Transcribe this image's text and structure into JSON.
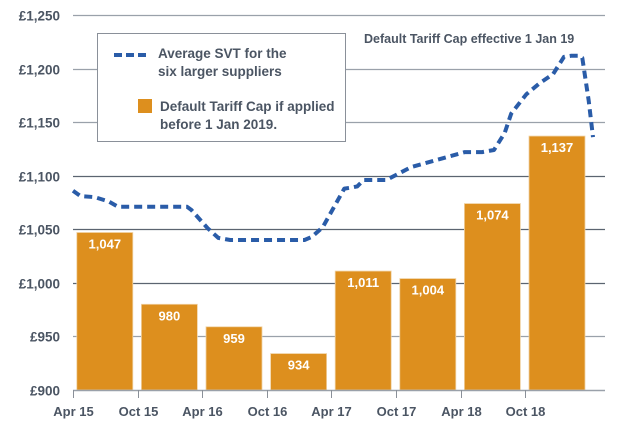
{
  "chart_data": {
    "type": "bar",
    "title": "",
    "xlabel": "",
    "ylabel": "",
    "ylim": [
      900,
      1250
    ],
    "yticks": [
      900,
      950,
      1000,
      1050,
      1100,
      1150,
      1200,
      1250
    ],
    "ytick_labels": [
      "£900",
      "£950",
      "£1,000",
      "£1,050",
      "£1,100",
      "£1,150",
      "£1,200",
      "£1,250"
    ],
    "xtick_labels": [
      "Apr 15",
      "Oct 15",
      "Apr 16",
      "Oct 16",
      "Apr 17",
      "Oct 17",
      "Apr 18",
      "Oct 18"
    ],
    "grid": true,
    "legend_position": "top-left",
    "series": [
      {
        "name": "Default Tariff Cap if applied before 1 Jan 2019.",
        "type": "bar",
        "color": "#DD8F1E",
        "periods": [
          "Apr 15",
          "Oct 15",
          "Apr 16",
          "Oct 16",
          "Apr 17",
          "Oct 17",
          "Apr 18",
          "Oct 18"
        ],
        "values": [
          1047,
          980,
          959,
          934,
          1011,
          1004,
          1074,
          1137
        ],
        "labels": [
          "1,047",
          "980",
          "959",
          "934",
          "1,011",
          "1,004",
          "1,074",
          "1,137"
        ]
      },
      {
        "name": "Average SVT for the six larger suppliers",
        "type": "line",
        "style": "dashed",
        "color": "#2A5CA8",
        "x_months_from_apr15": [
          0,
          0.7,
          2.0,
          3.3,
          4.2,
          10.6,
          11.0,
          12.5,
          13.5,
          14.6,
          16.0,
          16.5,
          17.8,
          21.5,
          22.2,
          23.2,
          25.2,
          25.9,
          26.4,
          27.0,
          27.6,
          28.2,
          29.1,
          31.4,
          36.4,
          36.9,
          37.5,
          38.0,
          39.1,
          40.1,
          40.7,
          42.1,
          43.3,
          44.6,
          45.6,
          46.3,
          46.9
        ],
        "y": [
          1086,
          1081,
          1080,
          1076,
          1071,
          1071,
          1068,
          1051,
          1042,
          1040,
          1040,
          1040,
          1040,
          1040,
          1043,
          1052,
          1088,
          1089,
          1090,
          1096,
          1096,
          1096,
          1096,
          1108,
          1122,
          1122,
          1122,
          1122,
          1124,
          1140,
          1158,
          1176,
          1186,
          1195,
          1211,
          1212,
          1212
        ]
      }
    ],
    "line_tail": {
      "x_months_from_apr15": [
        46.9,
        47.3,
        47.9,
        48.3
      ],
      "y": [
        1212,
        1210,
        1170,
        1136
      ]
    },
    "legend": {
      "line_label_1": "Average SVT for the",
      "line_label_2": "six larger suppliers",
      "bar_label_1": "Default Tariff Cap if applied",
      "bar_label_2": "before 1 Jan 2019."
    },
    "annotations": [
      "Default Tariff Cap effective 1 Jan 19"
    ]
  }
}
